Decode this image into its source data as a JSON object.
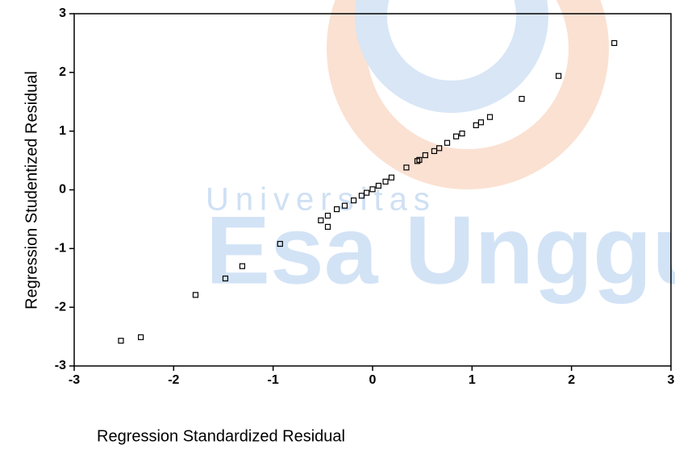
{
  "chart_data": {
    "type": "scatter",
    "xlabel": "Regression Standardized Residual",
    "ylabel": "Regression Studentized Residual",
    "watermark": [
      "Universitas",
      "Esa Unggul"
    ],
    "color": "#000000",
    "xlim": [
      -3,
      3
    ],
    "ylim": [
      -3,
      3
    ],
    "xticks": [
      -3,
      -2,
      -1,
      0,
      1,
      2,
      3
    ],
    "yticks": [
      -3,
      -2,
      -1,
      0,
      1,
      2,
      3
    ],
    "x": [
      2.43,
      1.87,
      1.5,
      1.18,
      1.09,
      1.04,
      0.9,
      0.84,
      0.75,
      0.67,
      0.62,
      0.53,
      0.47,
      0.45,
      0.34,
      0.19,
      0.13,
      0.06,
      0.0,
      -0.06,
      -0.11,
      -0.19,
      -0.28,
      -0.36,
      -0.45,
      -0.52,
      -0.45,
      -0.93,
      -1.31,
      -1.48,
      -1.78,
      -2.33,
      -2.53
    ],
    "y": [
      2.5,
      1.94,
      1.55,
      1.24,
      1.15,
      1.1,
      0.96,
      0.91,
      0.8,
      0.71,
      0.66,
      0.59,
      0.51,
      0.49,
      0.38,
      0.21,
      0.14,
      0.07,
      0.01,
      -0.05,
      -0.1,
      -0.18,
      -0.27,
      -0.33,
      -0.44,
      -0.52,
      -0.63,
      -0.92,
      -1.3,
      -1.51,
      -1.79,
      -2.51,
      -2.57
    ]
  }
}
